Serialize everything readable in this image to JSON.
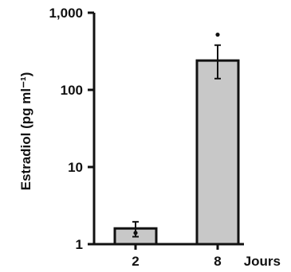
{
  "chart_data": {
    "type": "bar",
    "categories": [
      "2",
      "8"
    ],
    "values": [
      1.6,
      240
    ],
    "error_low": [
      1.25,
      140
    ],
    "error_high": [
      1.95,
      380
    ],
    "points": [
      {
        "category": "2",
        "y": 1.4
      },
      {
        "category": "8",
        "y": 520
      }
    ],
    "ylabel": "Estradiol (pg ml⁻¹)",
    "xlabel": "Jours",
    "y_scale": "log",
    "ylim": [
      1,
      1000
    ],
    "y_ticks": [
      {
        "value": 1,
        "label": "1"
      },
      {
        "value": 10,
        "label": "10"
      },
      {
        "value": 100,
        "label": "100"
      },
      {
        "value": 1000,
        "label": "1,000"
      }
    ],
    "grid": false,
    "colors": {
      "bar_fill": "#c8c8c8",
      "axis": "#111111"
    }
  }
}
